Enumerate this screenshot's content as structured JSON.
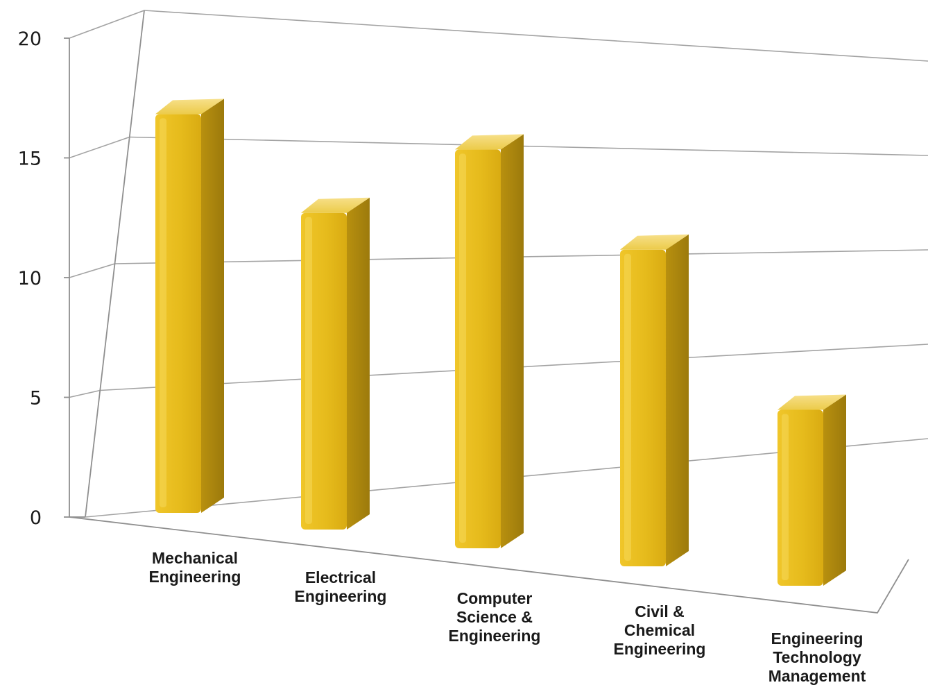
{
  "chart_data": {
    "type": "bar",
    "title": "",
    "xlabel": "",
    "ylabel": "",
    "ylim": [
      0,
      20
    ],
    "yticks": [
      "0",
      "5",
      "10",
      "15",
      "20"
    ],
    "grid": true,
    "legend": "none",
    "three_d": true,
    "categories": [
      [
        "Mechanical",
        "Engineering"
      ],
      [
        "Electrical",
        "Engineering"
      ],
      [
        "Computer",
        "Science &",
        "Engineering"
      ],
      [
        "Civil &",
        "Chemical",
        "Engineering"
      ],
      [
        "Engineering",
        "Technology",
        "Management"
      ]
    ],
    "values": [
      17,
      13.5,
      17,
      13.5,
      7.5
    ],
    "colors": {
      "bar_front": "#e8bd1f",
      "bar_side": "#b58f12",
      "bar_top": "#f3d66a"
    }
  }
}
